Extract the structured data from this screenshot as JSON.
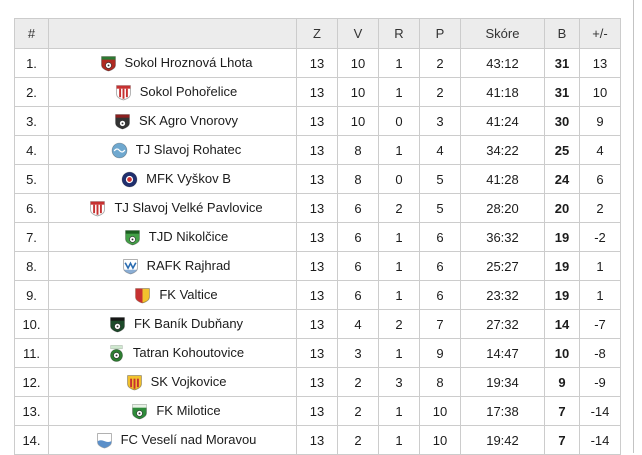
{
  "table": {
    "headers": {
      "pos": "#",
      "team": "",
      "z": "Z",
      "v": "V",
      "r": "R",
      "p": "P",
      "score": "Skóre",
      "b": "B",
      "pm": "+/-"
    },
    "teams": [
      {
        "pos": "1.",
        "name": "Sokol Hroznová Lhota",
        "z": "13",
        "v": "10",
        "r": "1",
        "p": "2",
        "score": "43:12",
        "b": "31",
        "pm": "13",
        "crest": {
          "shape": "shield",
          "body": "#b02a22",
          "top": "#2c7a33",
          "accent": "#ffffff",
          "motif": "ball"
        }
      },
      {
        "pos": "2.",
        "name": "Sokol Pohořelice",
        "z": "13",
        "v": "10",
        "r": "1",
        "p": "2",
        "score": "41:18",
        "b": "31",
        "pm": "10",
        "crest": {
          "shape": "shield",
          "body": "#ffffff",
          "top": "#c63131",
          "accent": "#c63131",
          "motif": "stripes"
        }
      },
      {
        "pos": "3.",
        "name": "SK Agro Vnorovy",
        "z": "13",
        "v": "10",
        "r": "0",
        "p": "3",
        "score": "41:24",
        "b": "30",
        "pm": "9",
        "crest": {
          "shape": "shield",
          "body": "#333333",
          "top": "#8c1f1f",
          "accent": "#ffffff",
          "motif": "ball"
        }
      },
      {
        "pos": "4.",
        "name": "TJ Slavoj Rohatec",
        "z": "13",
        "v": "8",
        "r": "1",
        "p": "4",
        "score": "34:22",
        "b": "25",
        "pm": "4",
        "crest": {
          "shape": "circle",
          "body": "#6fa8cf",
          "accent": "#ffffff",
          "motif": "script"
        }
      },
      {
        "pos": "5.",
        "name": "MFK Vyškov B",
        "z": "13",
        "v": "8",
        "r": "0",
        "p": "5",
        "score": "41:28",
        "b": "24",
        "pm": "6",
        "crest": {
          "shape": "circle",
          "body": "#1f2f6e",
          "accent": "#cf2e2e",
          "motif": "dot"
        }
      },
      {
        "pos": "6.",
        "name": "TJ Slavoj Velké Pavlovice",
        "z": "13",
        "v": "6",
        "r": "2",
        "p": "5",
        "score": "28:20",
        "b": "20",
        "pm": "2",
        "crest": {
          "shape": "shield",
          "body": "#ffffff",
          "top": "#c63131",
          "accent": "#c63131",
          "motif": "stripes"
        }
      },
      {
        "pos": "7.",
        "name": "TJD Nikolčice",
        "z": "13",
        "v": "6",
        "r": "1",
        "p": "6",
        "score": "36:32",
        "b": "19",
        "pm": "-2",
        "crest": {
          "shape": "shield",
          "body": "#43a047",
          "top": "#1b5e20",
          "accent": "#ffffff",
          "motif": "ball"
        }
      },
      {
        "pos": "8.",
        "name": "RAFK Rajhrad",
        "z": "13",
        "v": "6",
        "r": "1",
        "p": "6",
        "score": "25:27",
        "b": "19",
        "pm": "1",
        "crest": {
          "shape": "shield",
          "body": "#ffffff",
          "top": "#ffffff",
          "accent": "#2b6cb0",
          "motif": "chevron"
        }
      },
      {
        "pos": "9.",
        "name": "FK Valtice",
        "z": "13",
        "v": "6",
        "r": "1",
        "p": "6",
        "score": "23:32",
        "b": "19",
        "pm": "1",
        "crest": {
          "shape": "shield",
          "body": "#f2c22e",
          "top": "#f2c22e",
          "accent": "#c63131",
          "motif": "half"
        }
      },
      {
        "pos": "10.",
        "name": "FK Baník Dubňany",
        "z": "13",
        "v": "4",
        "r": "2",
        "p": "7",
        "score": "27:32",
        "b": "14",
        "pm": "-7",
        "crest": {
          "shape": "shield",
          "body": "#1d4a2a",
          "top": "#161616",
          "accent": "#ffffff",
          "motif": "ball"
        }
      },
      {
        "pos": "11.",
        "name": "Tatran Kohoutovice",
        "z": "13",
        "v": "3",
        "r": "1",
        "p": "9",
        "score": "14:47",
        "b": "10",
        "pm": "-8",
        "crest": {
          "shape": "circle",
          "body": "#2e7d32",
          "banner": "#cfe8cf",
          "accent": "#ffffff",
          "motif": "ball"
        }
      },
      {
        "pos": "12.",
        "name": "SK Vojkovice",
        "z": "13",
        "v": "2",
        "r": "3",
        "p": "8",
        "score": "19:34",
        "b": "9",
        "pm": "-9",
        "crest": {
          "shape": "shield",
          "body": "#f2c22e",
          "top": "#f2c22e",
          "accent": "#c63131",
          "motif": "stripes"
        }
      },
      {
        "pos": "13.",
        "name": "FK Milotice",
        "z": "13",
        "v": "2",
        "r": "1",
        "p": "10",
        "score": "17:38",
        "b": "7",
        "pm": "-14",
        "crest": {
          "shape": "shield",
          "body": "#2e8b3a",
          "top": "#e8f2e6",
          "accent": "#ffffff",
          "motif": "ball"
        }
      },
      {
        "pos": "14.",
        "name": "FC Veselí nad Moravou",
        "z": "13",
        "v": "2",
        "r": "1",
        "p": "10",
        "score": "19:42",
        "b": "7",
        "pm": "-14",
        "crest": {
          "shape": "shield",
          "body": "#ffffff",
          "top": "#ffffff",
          "accent": "#5b8fc9",
          "motif": "wave"
        }
      }
    ]
  },
  "colors": {
    "header_bg": "#ececec",
    "border": "#cccccc",
    "text": "#1c1c1c"
  }
}
